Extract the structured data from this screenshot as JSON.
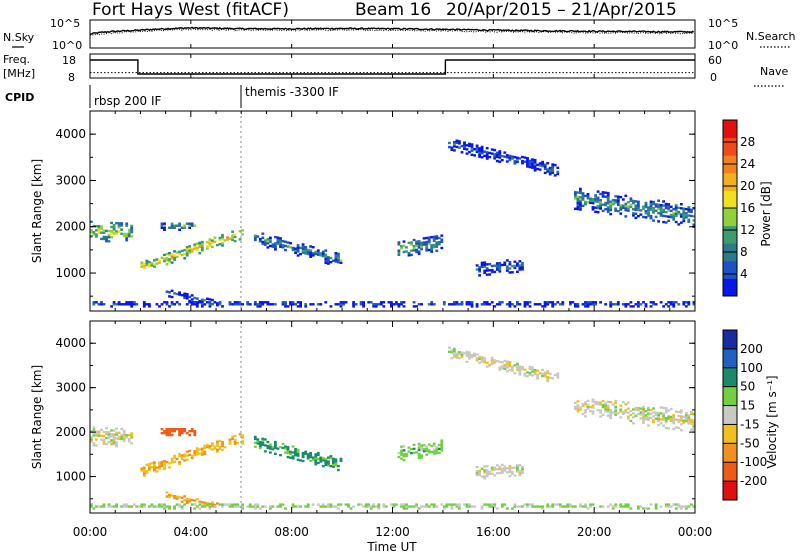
{
  "header": {
    "station": "Fort Hays West (fitACF)",
    "beam": "Beam 16",
    "date_range": "20/Apr/2015 – 21/Apr/2015"
  },
  "top_panels": {
    "nsky_label": "N.Sky",
    "nsky_ticks": [
      "10^5",
      "10^0"
    ],
    "nsearch_label": "N.Search",
    "nsearch_ticks": [
      "10^5",
      "10^0"
    ],
    "freq_label": "Freq.",
    "freq_unit": "[MHz]",
    "freq_ticks": [
      "18",
      "8"
    ],
    "nave_label": "Nave",
    "nave_ticks": [
      "60",
      "0"
    ],
    "cpid_label": "CPID",
    "cpid_segments": [
      "rbsp 200 IF",
      "themis -3300 IF"
    ]
  },
  "axes": {
    "xlabel": "Time UT",
    "x_ticks": [
      "00:00",
      "04:00",
      "08:00",
      "12:00",
      "16:00",
      "20:00",
      "00:00"
    ],
    "ylabel": "Slant Range [km]",
    "y_ticks": [
      "1000",
      "2000",
      "3000",
      "4000"
    ]
  },
  "power_bar": {
    "label": "Power [dB]",
    "ticks": [
      "4",
      "8",
      "12",
      "16",
      "20",
      "24",
      "28"
    ],
    "colors": [
      "#0a16e6",
      "#1e50c8",
      "#2a7a8c",
      "#3c9c6e",
      "#8fd03c",
      "#f0e020",
      "#f0b020",
      "#f08020",
      "#f04a18",
      "#e01010"
    ]
  },
  "velocity_bar": {
    "label": "Velocity [m s⁻¹]",
    "ticks": [
      "200",
      "100",
      "50",
      "15",
      "-15",
      "-50",
      "-100",
      "-200"
    ],
    "colors": [
      "#1a2aa0",
      "#2060c0",
      "#1a8a6a",
      "#70d040",
      "#c8c8c4",
      "#f0c020",
      "#f09020",
      "#f05a18",
      "#e01010"
    ]
  },
  "chart_data": [
    {
      "type": "line",
      "title": "N.Sky / N.Search",
      "x_range_hours": [
        0,
        24
      ],
      "ylim": [
        1,
        100000
      ],
      "series": [
        {
          "name": "N.Sky",
          "x": [
            0,
            2,
            4,
            6,
            8,
            10,
            12,
            14,
            16,
            18,
            20,
            22,
            24
          ],
          "values": [
            300,
            2000,
            6000,
            4000,
            4000,
            4500,
            4000,
            3000,
            2000,
            1500,
            1200,
            1000,
            900
          ]
        },
        {
          "name": "N.Search",
          "x": [
            0,
            2,
            4,
            6,
            8,
            10,
            12,
            14,
            16,
            18,
            20,
            22,
            24
          ],
          "values": [
            150,
            1000,
            3000,
            2000,
            2000,
            2200,
            2000,
            1500,
            1000,
            800,
            600,
            500,
            450
          ]
        }
      ]
    },
    {
      "type": "line",
      "title": "Freq. / Nave",
      "x_range_hours": [
        0,
        24
      ],
      "series": [
        {
          "name": "Freq.",
          "x": [
            0,
            1.9,
            1.9,
            14.1,
            14.1,
            24
          ],
          "values": [
            17,
            17,
            10,
            10,
            17,
            17
          ]
        },
        {
          "name": "Nave",
          "x": [
            0,
            24
          ],
          "values": [
            16,
            16
          ]
        }
      ]
    },
    {
      "type": "heatmap",
      "title": "Power [dB]",
      "x_range_hours": [
        0,
        24
      ],
      "ylim_km": [
        180,
        4500
      ],
      "cell_width_hours": 0.1,
      "cell_height_km": 45,
      "regions": [
        {
          "t": [
            0,
            1.7
          ],
          "r_center": [
            1900,
            1850
          ],
          "halfwidth_km": 220,
          "power_db": 14
        },
        {
          "t": [
            2.0,
            6.0
          ],
          "r_center": [
            1100,
            1850
          ],
          "halfwidth_km": 130,
          "power_db": 18
        },
        {
          "t": [
            2.8,
            4.2
          ],
          "r_center": [
            2000,
            2000
          ],
          "halfwidth_km": 90,
          "power_db": 10
        },
        {
          "t": [
            3.0,
            5.0
          ],
          "r_center": [
            550,
            300
          ],
          "halfwidth_km": 80,
          "power_db": 6
        },
        {
          "t": [
            6.5,
            9.9
          ],
          "r_center": [
            1750,
            1250
          ],
          "halfwidth_km": 150,
          "power_db": 9
        },
        {
          "t": [
            12.2,
            13.9
          ],
          "r_center": [
            1500,
            1650
          ],
          "halfwidth_km": 180,
          "power_db": 11
        },
        {
          "t": [
            14.2,
            18.6
          ],
          "r_center": [
            3800,
            3200
          ],
          "halfwidth_km": 130,
          "power_db": 5
        },
        {
          "t": [
            19.2,
            24
          ],
          "r_center": [
            2600,
            2200
          ],
          "halfwidth_km": 230,
          "power_db": 10
        },
        {
          "t": [
            15.3,
            17.2
          ],
          "r_center": [
            1050,
            1150
          ],
          "halfwidth_km": 140,
          "power_db": 7
        },
        {
          "t": [
            0,
            24
          ],
          "r_center": [
            300,
            300
          ],
          "halfwidth_km": 60,
          "power_db": 5
        }
      ]
    },
    {
      "type": "heatmap",
      "title": "Velocity [m s-1]",
      "x_range_hours": [
        0,
        24
      ],
      "ylim_km": [
        180,
        4500
      ],
      "cell_width_hours": 0.1,
      "cell_height_km": 45,
      "regions": [
        {
          "t": [
            0,
            1.7
          ],
          "r_center": [
            1900,
            1850
          ],
          "halfwidth_km": 220,
          "velocity": 0
        },
        {
          "t": [
            2.0,
            6.0
          ],
          "r_center": [
            1100,
            1850
          ],
          "halfwidth_km": 130,
          "velocity": -40
        },
        {
          "t": [
            2.8,
            4.2
          ],
          "r_center": [
            2000,
            2000
          ],
          "halfwidth_km": 90,
          "velocity": -150
        },
        {
          "t": [
            3.0,
            5.0
          ],
          "r_center": [
            550,
            300
          ],
          "halfwidth_km": 80,
          "velocity": -50
        },
        {
          "t": [
            6.5,
            9.9
          ],
          "r_center": [
            1750,
            1250
          ],
          "halfwidth_km": 150,
          "velocity": 60
        },
        {
          "t": [
            12.2,
            13.9
          ],
          "r_center": [
            1500,
            1650
          ],
          "halfwidth_km": 180,
          "velocity": 30
        },
        {
          "t": [
            14.2,
            18.6
          ],
          "r_center": [
            3800,
            3200
          ],
          "halfwidth_km": 130,
          "velocity": 0
        },
        {
          "t": [
            19.2,
            24
          ],
          "r_center": [
            2600,
            2200
          ],
          "halfwidth_km": 230,
          "velocity": 0
        },
        {
          "t": [
            15.3,
            17.2
          ],
          "r_center": [
            1050,
            1150
          ],
          "halfwidth_km": 140,
          "velocity": 0
        },
        {
          "t": [
            0,
            24
          ],
          "r_center": [
            300,
            300
          ],
          "halfwidth_km": 60,
          "velocity": 20
        }
      ]
    }
  ]
}
